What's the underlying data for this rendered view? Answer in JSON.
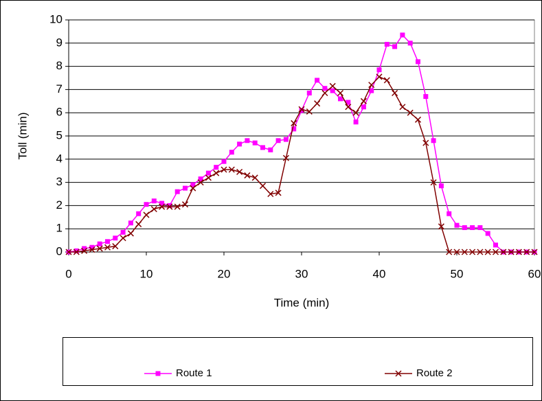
{
  "chart_data": {
    "type": "line",
    "x": [
      0,
      1,
      2,
      3,
      4,
      5,
      6,
      7,
      8,
      9,
      10,
      11,
      12,
      13,
      14,
      15,
      16,
      17,
      18,
      19,
      20,
      21,
      22,
      23,
      24,
      25,
      26,
      27,
      28,
      29,
      30,
      31,
      32,
      33,
      34,
      35,
      36,
      37,
      38,
      39,
      40,
      41,
      42,
      43,
      44,
      45,
      46,
      47,
      48,
      49,
      50,
      51,
      52,
      53,
      54,
      55,
      56,
      57,
      58,
      59,
      60
    ],
    "series": [
      {
        "name": "Route 1",
        "color": "#ff00ff",
        "marker": "square",
        "values": [
          0,
          0.05,
          0.15,
          0.2,
          0.35,
          0.45,
          0.6,
          0.85,
          1.25,
          1.65,
          2.05,
          2.2,
          2.1,
          2.0,
          2.6,
          2.75,
          2.9,
          3.15,
          3.4,
          3.65,
          3.9,
          4.3,
          4.65,
          4.8,
          4.7,
          4.5,
          4.4,
          4.8,
          4.85,
          5.3,
          6.1,
          6.85,
          7.4,
          7.05,
          6.95,
          6.6,
          6.45,
          5.6,
          6.25,
          6.95,
          7.85,
          8.95,
          8.85,
          9.35,
          9.0,
          8.2,
          6.7,
          4.8,
          2.85,
          1.65,
          1.15,
          1.05,
          1.05,
          1.05,
          0.8,
          0.3,
          0,
          0,
          0,
          0,
          0
        ]
      },
      {
        "name": "Route 2",
        "color": "#800000",
        "marker": "x",
        "values": [
          0,
          0,
          0.05,
          0.1,
          0.15,
          0.2,
          0.25,
          0.6,
          0.8,
          1.2,
          1.6,
          1.85,
          1.95,
          1.95,
          1.95,
          2.05,
          2.75,
          3.0,
          3.2,
          3.4,
          3.55,
          3.55,
          3.45,
          3.3,
          3.2,
          2.85,
          2.5,
          2.55,
          4.05,
          5.55,
          6.15,
          6.05,
          6.4,
          6.85,
          7.15,
          6.85,
          6.25,
          6.0,
          6.5,
          7.2,
          7.55,
          7.4,
          6.85,
          6.25,
          6.0,
          5.7,
          4.7,
          3.0,
          1.1,
          0,
          0,
          0,
          0,
          0,
          0,
          0,
          0,
          0,
          0,
          0,
          0
        ]
      }
    ],
    "x_label": "Time (min)",
    "y_label": "Toll (min)",
    "xlim": [
      0,
      60
    ],
    "xticks": [
      0,
      10,
      20,
      30,
      40,
      50,
      60
    ],
    "ylim": [
      0,
      10
    ],
    "yticks": [
      0,
      1,
      2,
      3,
      4,
      5,
      6,
      7,
      8,
      9,
      10
    ],
    "grid": true,
    "legend": "bottom"
  }
}
